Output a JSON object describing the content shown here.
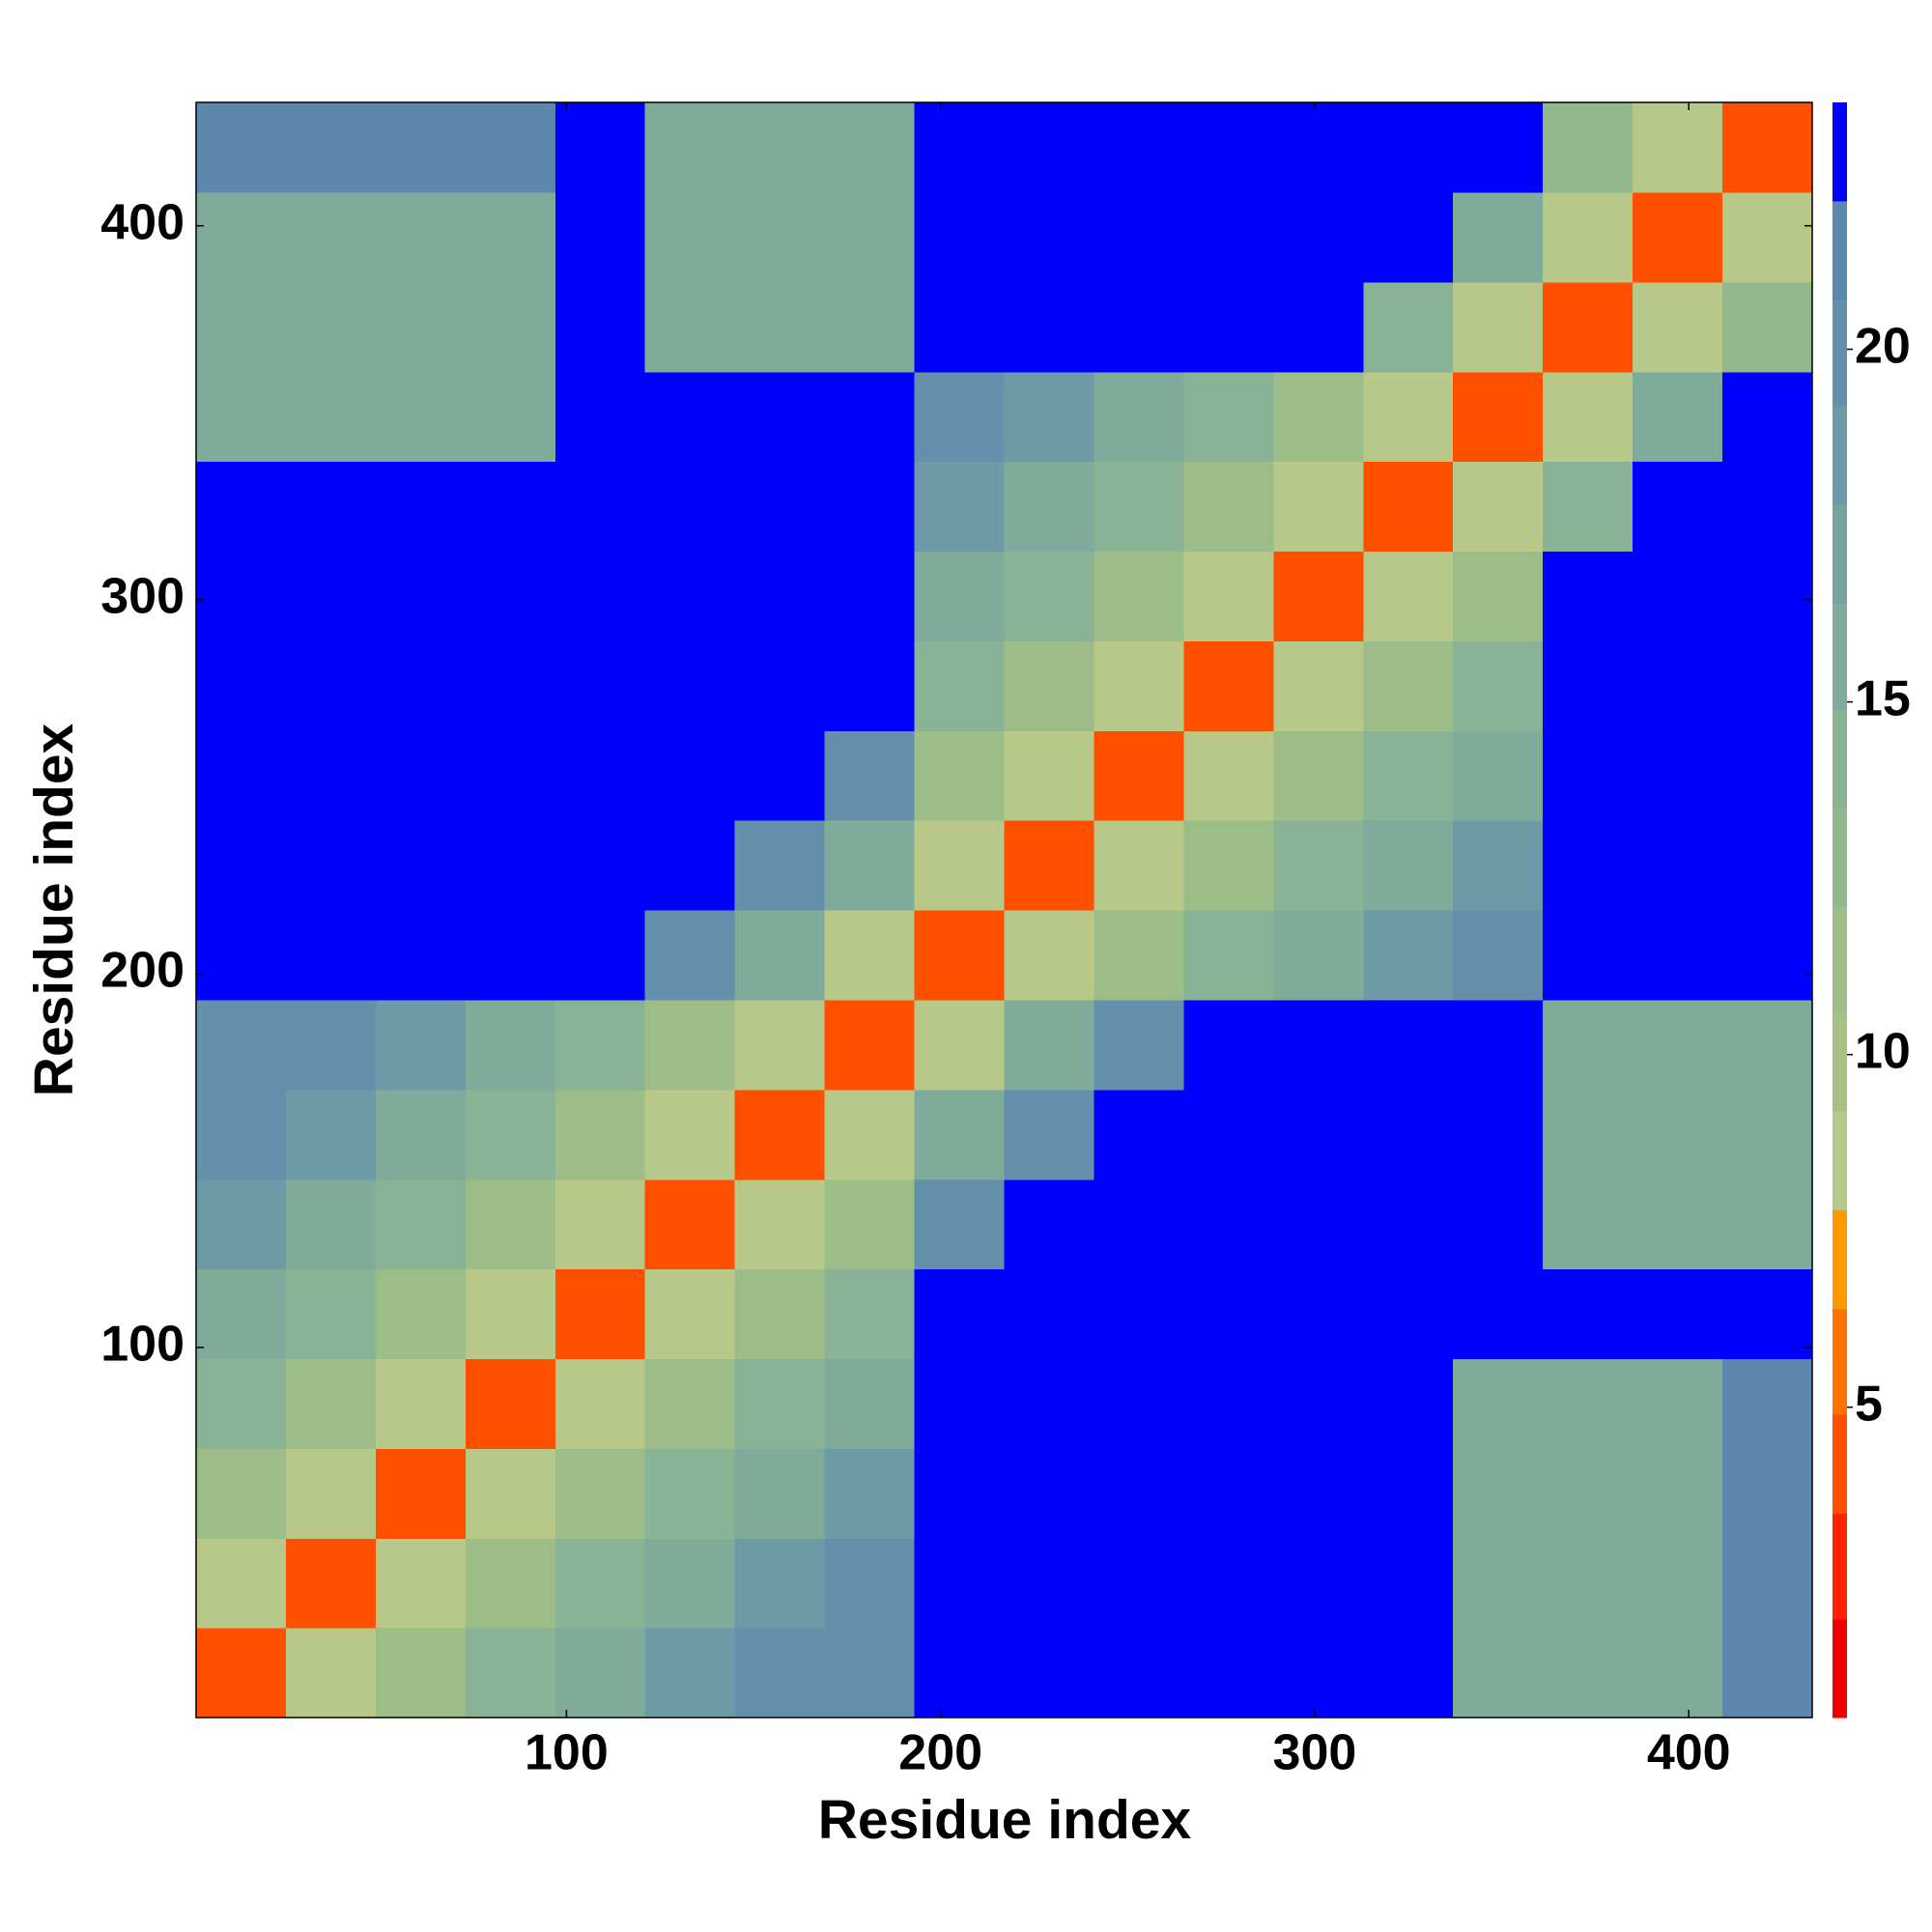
{
  "chart_data": {
    "type": "heatmap",
    "xlabel": "Residue index",
    "ylabel": "Residue index",
    "xlim": [
      1,
      433
    ],
    "ylim": [
      1,
      433
    ],
    "xticks": [
      100,
      200,
      300,
      400
    ],
    "yticks": [
      100,
      200,
      300,
      400
    ],
    "bins": [
      1,
      25,
      49,
      73,
      97,
      121,
      145,
      169,
      193,
      217,
      241,
      265,
      289,
      313,
      337,
      361,
      385,
      409,
      433
    ],
    "z": [
      [
        4,
        9,
        12,
        14,
        16,
        18,
        20,
        20,
        23,
        23,
        23,
        23,
        23,
        23,
        15,
        15,
        15,
        21
      ],
      [
        9,
        4,
        9,
        12,
        14,
        16,
        18,
        20,
        23,
        23,
        23,
        23,
        23,
        23,
        15,
        15,
        15,
        21
      ],
      [
        12,
        9,
        4,
        9,
        12,
        14,
        16,
        18,
        23,
        23,
        23,
        23,
        23,
        23,
        15,
        15,
        15,
        21
      ],
      [
        14,
        12,
        9,
        4,
        9,
        12,
        14,
        16,
        23,
        23,
        23,
        23,
        23,
        23,
        15,
        15,
        15,
        21
      ],
      [
        16,
        14,
        12,
        9,
        4,
        9,
        12,
        14,
        23,
        23,
        23,
        23,
        23,
        23,
        23,
        23,
        23,
        23
      ],
      [
        18,
        16,
        14,
        12,
        9,
        4,
        9,
        12,
        20,
        23,
        23,
        23,
        23,
        23,
        23,
        16,
        16,
        16
      ],
      [
        20,
        18,
        16,
        14,
        12,
        9,
        4,
        9,
        16,
        20,
        23,
        23,
        23,
        23,
        23,
        16,
        16,
        16
      ],
      [
        20,
        20,
        18,
        16,
        14,
        12,
        9,
        4,
        9,
        16,
        20,
        23,
        23,
        23,
        23,
        16,
        16,
        16
      ],
      [
        23,
        23,
        23,
        23,
        23,
        20,
        16,
        9,
        4,
        9,
        12,
        14,
        16,
        18,
        20,
        23,
        23,
        23
      ],
      [
        23,
        23,
        23,
        23,
        23,
        23,
        20,
        16,
        9,
        4,
        9,
        12,
        14,
        16,
        18,
        23,
        23,
        23
      ],
      [
        23,
        23,
        23,
        23,
        23,
        23,
        23,
        20,
        12,
        9,
        4,
        9,
        12,
        14,
        16,
        23,
        23,
        23
      ],
      [
        23,
        23,
        23,
        23,
        23,
        23,
        23,
        23,
        14,
        12,
        9,
        4,
        9,
        12,
        14,
        23,
        23,
        23
      ],
      [
        23,
        23,
        23,
        23,
        23,
        23,
        23,
        23,
        16,
        14,
        12,
        9,
        4,
        9,
        12,
        23,
        23,
        23
      ],
      [
        23,
        23,
        23,
        23,
        23,
        23,
        23,
        23,
        18,
        16,
        14,
        12,
        9,
        4,
        9,
        14,
        23,
        23
      ],
      [
        15,
        15,
        15,
        15,
        23,
        23,
        23,
        23,
        20,
        18,
        16,
        14,
        12,
        9,
        4,
        9,
        16,
        23
      ],
      [
        15,
        15,
        15,
        15,
        23,
        16,
        16,
        16,
        23,
        23,
        23,
        23,
        23,
        14,
        9,
        4,
        9,
        13
      ],
      [
        15,
        15,
        15,
        15,
        23,
        16,
        16,
        16,
        23,
        23,
        23,
        23,
        23,
        23,
        16,
        9,
        4,
        9
      ],
      [
        21,
        21,
        21,
        21,
        23,
        16,
        16,
        16,
        23,
        23,
        23,
        23,
        23,
        23,
        23,
        13,
        9,
        4
      ]
    ],
    "colorbar": {
      "levels": [
        0.6,
        2.0,
        3.5,
        4.9,
        6.4,
        7.8,
        9.2,
        10.6,
        12.1,
        13.5,
        14.9,
        16.4,
        17.8,
        19.2,
        20.7,
        22.1,
        23.5
      ],
      "colors": [
        "#f00000",
        "#ff2200",
        "#ff5000",
        "#ff7400",
        "#ff9900",
        "#b8c888",
        "#a8c084",
        "#9dbd88",
        "#94b88e",
        "#8ab294",
        "#80aa9a",
        "#76a2a0",
        "#6c9aa6",
        "#6490ac",
        "#5c88b0",
        "#0000ff"
      ],
      "ticks": [
        5,
        10,
        15,
        20
      ]
    }
  }
}
